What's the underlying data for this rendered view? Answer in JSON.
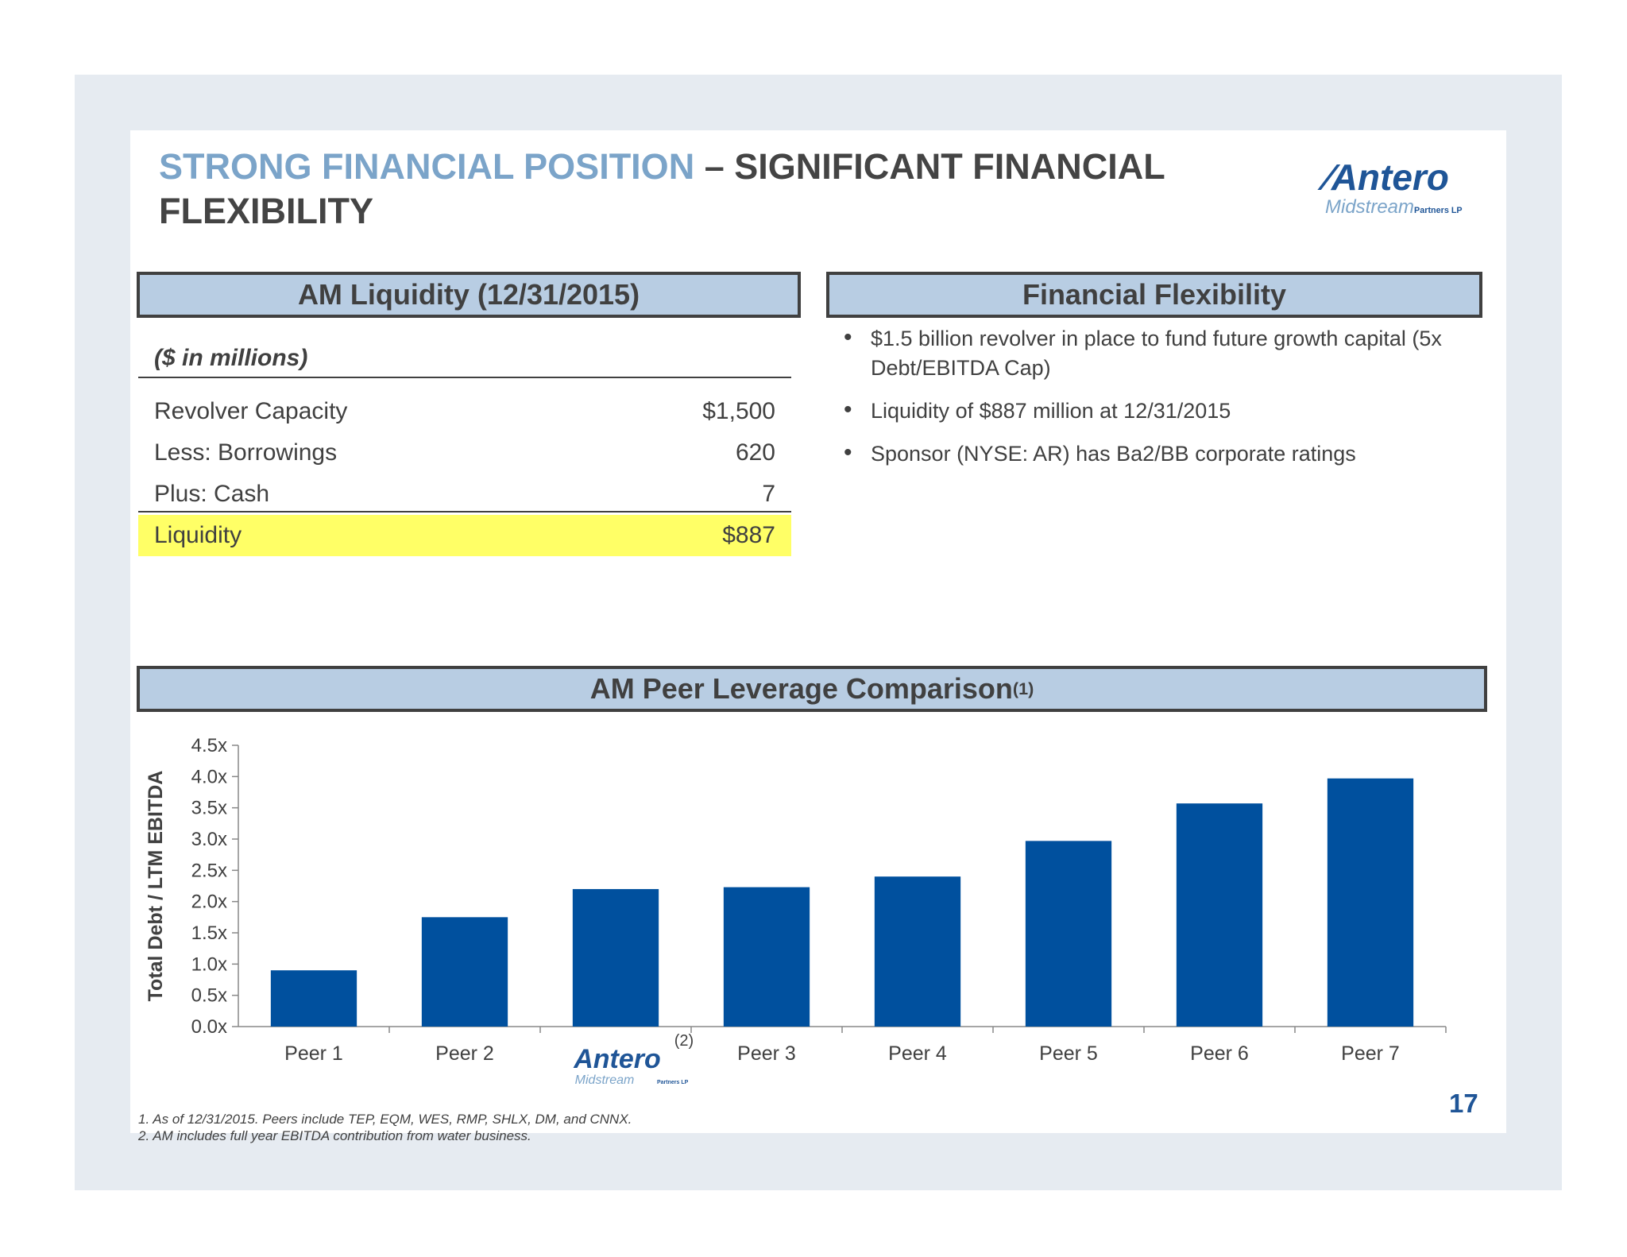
{
  "title": {
    "highlight": "STRONG FINANCIAL POSITION",
    "rest": " – SIGNIFICANT FINANCIAL FLEXIBILITY"
  },
  "logo": {
    "name": "Antero",
    "sub": "Midstream",
    "suffix": "Partners LP"
  },
  "liquidity": {
    "header": "AM Liquidity (12/31/2015)",
    "units": "($ in millions)",
    "rows": [
      {
        "label": "Revolver Capacity",
        "value": "$1,500"
      },
      {
        "label": "Less: Borrowings",
        "value": "620"
      },
      {
        "label": "Plus: Cash",
        "value": "7"
      },
      {
        "label": "Liquidity",
        "value": "$887"
      }
    ]
  },
  "flexibility": {
    "header": "Financial Flexibility",
    "bullets": [
      "$1.5 billion revolver in place to fund future growth capital (5x Debt/EBITDA Cap)",
      "Liquidity of $887 million at 12/31/2015",
      "Sponsor (NYSE: AR) has Ba2/BB corporate ratings"
    ]
  },
  "peer_header": {
    "text": "AM Peer Leverage Comparison",
    "sup": "(1)"
  },
  "chart_data": {
    "type": "bar",
    "title": "AM Peer Leverage Comparison",
    "ylabel": "Total Debt / LTM EBITDA",
    "xlabel": "",
    "categories": [
      "Peer 1",
      "Peer 2",
      "Antero",
      "Peer 3",
      "Peer 4",
      "Peer 5",
      "Peer 6",
      "Peer 7"
    ],
    "values": [
      0.9,
      1.75,
      2.2,
      2.23,
      2.4,
      2.97,
      3.57,
      3.97
    ],
    "ylim": [
      0,
      4.5
    ],
    "yticks": [
      "0.0x",
      "0.5x",
      "1.0x",
      "1.5x",
      "2.0x",
      "2.5x",
      "3.0x",
      "3.5x",
      "4.0x",
      "4.5x"
    ],
    "logo_category_note": "(2)",
    "bar_color": "#00509e",
    "grid": false
  },
  "footnotes": [
    "1.  As of 12/31/2015.  Peers include TEP, EQM, WES, RMP, SHLX, DM, and CNNX.",
    "2.  AM includes full year EBITDA contribution from water business."
  ],
  "page_number": "17"
}
